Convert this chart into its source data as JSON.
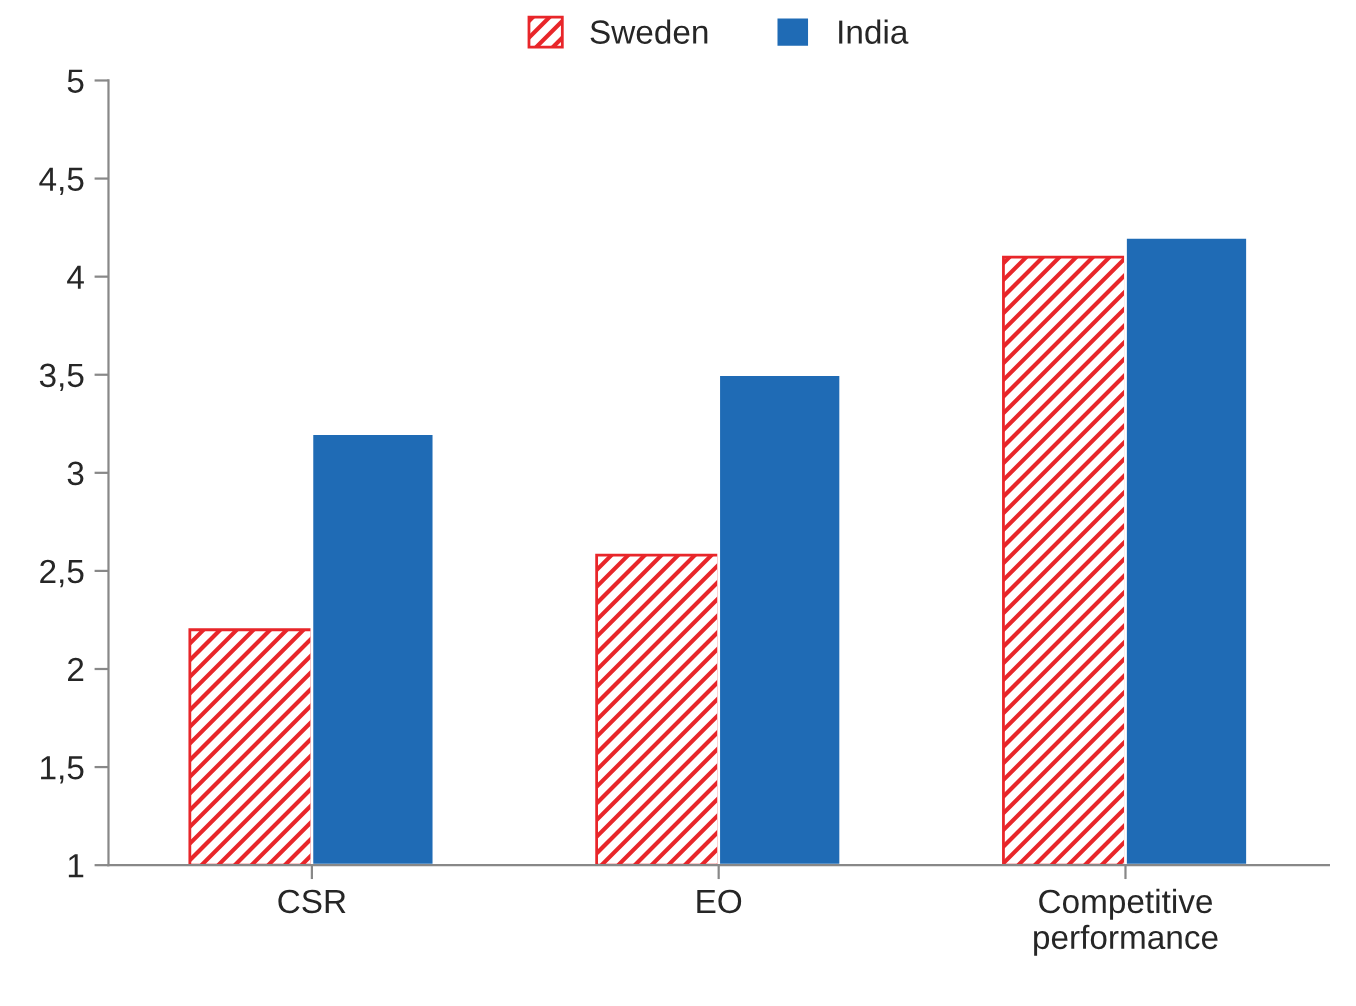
{
  "chart_data": {
    "type": "bar",
    "categories": [
      "CSR",
      "EO",
      "Competitive\nperformance"
    ],
    "series": [
      {
        "name": "Sweden",
        "color": "#e8262a",
        "values": [
          2.2,
          2.58,
          4.1
        ]
      },
      {
        "name": "India",
        "color": "#1f6bb5",
        "values": [
          3.2,
          3.5,
          4.2
        ]
      }
    ],
    "ylim": [
      1,
      5
    ],
    "yticks": [
      1,
      {
        "value": 1.5,
        "label": "1,5"
      },
      2,
      {
        "value": 2.5,
        "label": "2,5"
      },
      3,
      {
        "value": 3.5,
        "label": "3,5"
      },
      4,
      {
        "value": 4.5,
        "label": "4,5"
      },
      5
    ],
    "legend": "top"
  }
}
